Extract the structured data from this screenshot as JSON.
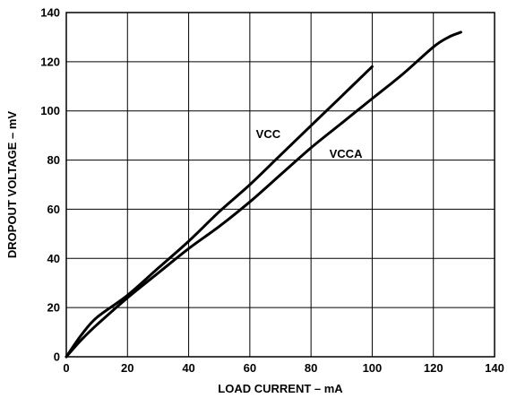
{
  "chart_data": {
    "type": "line",
    "title": "",
    "xlabel": "LOAD CURRENT – mA",
    "ylabel": "DROPOUT VOLTAGE – mV",
    "xlim": [
      0,
      140
    ],
    "ylim": [
      0,
      140
    ],
    "xticks": [
      0,
      20,
      40,
      60,
      80,
      100,
      120,
      140
    ],
    "yticks": [
      0,
      20,
      40,
      60,
      80,
      100,
      120,
      140
    ],
    "grid": true,
    "line_color": "#000000",
    "series": [
      {
        "name": "VCC",
        "x": [
          0,
          5,
          10,
          20,
          30,
          40,
          50,
          60,
          70,
          80,
          90,
          100
        ],
        "y": [
          0,
          9,
          16,
          25,
          36,
          47,
          59,
          70,
          82,
          94,
          106,
          118
        ]
      },
      {
        "name": "VCCA",
        "x": [
          0,
          5,
          10,
          20,
          30,
          40,
          50,
          60,
          70,
          80,
          90,
          100,
          110,
          120,
          125,
          129
        ],
        "y": [
          0,
          7,
          13,
          24,
          34,
          44,
          53,
          63,
          74,
          85,
          95,
          105,
          115,
          126,
          130,
          132
        ]
      }
    ]
  }
}
